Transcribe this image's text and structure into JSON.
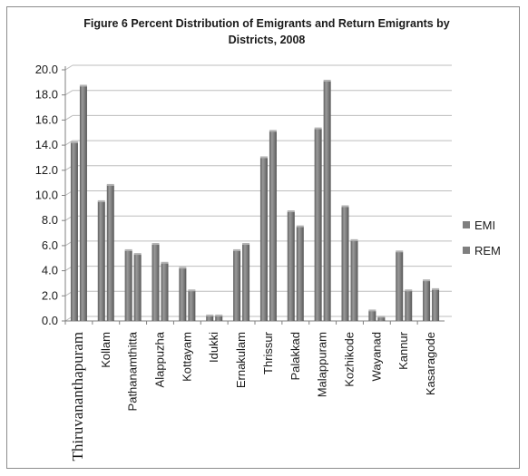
{
  "chart_data": {
    "type": "bar",
    "title_lines": [
      "Figure 6 Percent Distribution of Emigrants and Return Emigrants by",
      "Districts, 2008"
    ],
    "categories": [
      "Thiruvananthapuram",
      "Kollam",
      "Pathanamthitta",
      "Alappuzha",
      "Kottayam",
      "Idukki",
      "Ernakulam",
      "Thrissur",
      "Palakkad",
      "Malappuram",
      "Kozhikode",
      "Wayanad",
      "Kannur",
      "Kasaragode"
    ],
    "series": [
      {
        "name": "EMI",
        "color": "#7f7f7f",
        "values": [
          14.2,
          9.5,
          5.6,
          6.1,
          4.2,
          0.4,
          5.6,
          13.0,
          8.7,
          15.3,
          9.1,
          0.8,
          5.5,
          3.2
        ]
      },
      {
        "name": "REM",
        "color": "#7f7f7f",
        "values": [
          18.7,
          10.8,
          5.3,
          4.6,
          2.4,
          0.4,
          6.1,
          15.1,
          7.5,
          19.1,
          6.4,
          0.3,
          2.4,
          2.5
        ]
      }
    ],
    "yticks": [
      "0.0",
      "2.0",
      "4.0",
      "6.0",
      "8.0",
      "10.0",
      "12.0",
      "14.0",
      "16.0",
      "18.0",
      "20.0"
    ],
    "ylim": [
      0,
      20
    ],
    "grid": true,
    "legend_position": "right",
    "bar_style": "3d-shaded"
  }
}
